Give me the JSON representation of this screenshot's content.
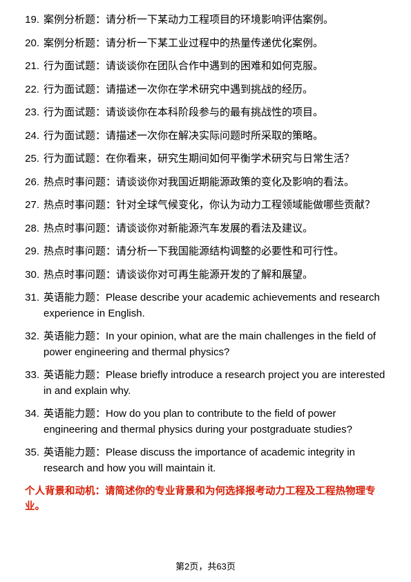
{
  "questions": [
    {
      "num": "19.",
      "text": "案例分析题：请分析一下某动力工程项目的环境影响评估案例。"
    },
    {
      "num": "20.",
      "text": "案例分析题：请分析一下某工业过程中的热量传递优化案例。"
    },
    {
      "num": "21.",
      "text": "行为面试题：请谈谈你在团队合作中遇到的困难和如何克服。"
    },
    {
      "num": "22.",
      "text": "行为面试题：请描述一次你在学术研究中遇到挑战的经历。"
    },
    {
      "num": "23.",
      "text": "行为面试题：请谈谈你在本科阶段参与的最有挑战性的项目。"
    },
    {
      "num": "24.",
      "text": "行为面试题：请描述一次你在解决实际问题时所采取的策略。"
    },
    {
      "num": "25.",
      "text": "行为面试题：在你看来，研究生期间如何平衡学术研究与日常生活？"
    },
    {
      "num": "26.",
      "text": "热点时事问题：请谈谈你对我国近期能源政策的变化及影响的看法。"
    },
    {
      "num": "27.",
      "text": "热点时事问题：针对全球气候变化，你认为动力工程领域能做哪些贡献？"
    },
    {
      "num": "28.",
      "text": "热点时事问题：请谈谈你对新能源汽车发展的看法及建议。"
    },
    {
      "num": "29.",
      "text": "热点时事问题：请分析一下我国能源结构调整的必要性和可行性。"
    },
    {
      "num": "30.",
      "text": "热点时事问题：请谈谈你对可再生能源开发的了解和展望。"
    },
    {
      "num": "31.",
      "text": "英语能力题：Please describe your academic achievements and research experience in English."
    },
    {
      "num": "32.",
      "text": "英语能力题：In your opinion, what are the main challenges in the field of power engineering and thermal physics?"
    },
    {
      "num": "33.",
      "text": "英语能力题：Please briefly introduce a research project you are interested in and explain why."
    },
    {
      "num": "34.",
      "text": "英语能力题：How do you plan to contribute to the field of power engineering and thermal physics during your postgraduate studies?"
    },
    {
      "num": "35.",
      "text": "英语能力题：Please discuss the importance of academic integrity in research and how you will maintain it."
    }
  ],
  "footnote": "个人背景和动机：请简述你的专业背景和为何选择报考动力工程及工程热物理专业。",
  "pager": "第2页，共63页",
  "colors": {
    "text": "#000000",
    "highlight": "#d81e06",
    "background": "#ffffff"
  },
  "typography": {
    "body_fontsize": 15,
    "footnote_fontsize": 14.5,
    "pager_fontsize": 13,
    "line_height": 1.5
  }
}
